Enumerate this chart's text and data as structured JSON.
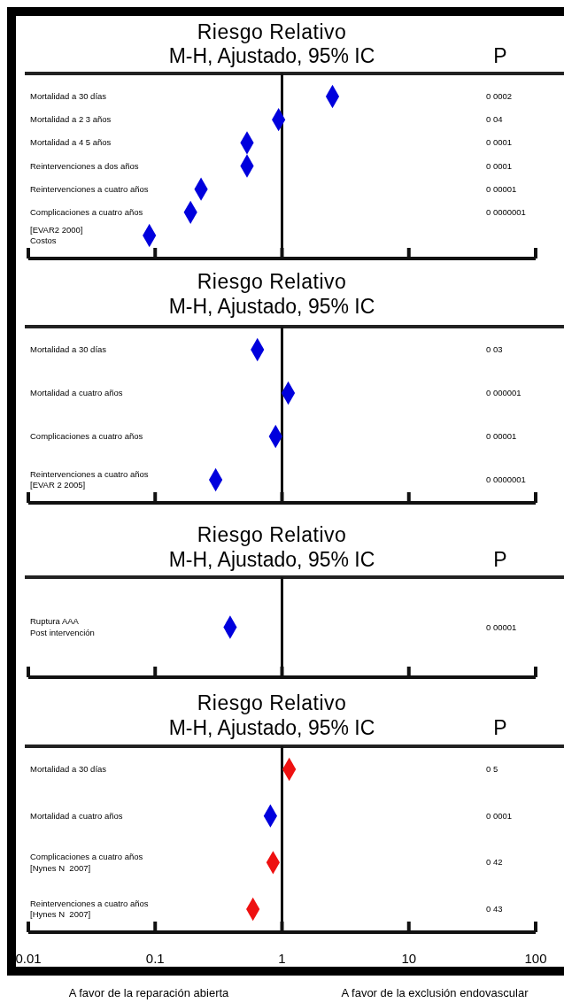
{
  "chart_data": [
    {
      "type": "scatter",
      "orientation": "horizontal",
      "title": "Riesgo Relativo",
      "subtitle": "M-H, Ajustado, 95% IC",
      "y2label": "P",
      "log": "x",
      "marker": "diamond",
      "tick_labels": "y",
      "xlim": [
        0.01,
        100
      ],
      "xticks": [
        0.01,
        0.1,
        1,
        10,
        100
      ],
      "categories": [
        "Mortalidad a 30 días",
        "Mortalidad a 2 3 años",
        "Mortalidad a 4 5 años",
        "Reintervenciones a dos años",
        "Reintervenciones a cuatro años",
        "Complicaciones a cuatro años",
        "[EVAR2 2000]\nCostos"
      ],
      "values": [
        2.5,
        0.94,
        0.53,
        0.53,
        0.23,
        0.19,
        0.09
      ],
      "color": "#0000dd",
      "ref_lines": [
        {
          "axis": "x",
          "value": 1
        }
      ],
      "annotations": [
        "0 0002",
        "0 04",
        "0 0001",
        "0 0001",
        "0 00001",
        "0 0000001"
      ]
    },
    {
      "type": "scatter",
      "orientation": "horizontal",
      "title": "Riesgo Relativo",
      "subtitle": "M-H, Ajustado, 95% IC",
      "log": "x",
      "marker": "diamond",
      "tick_labels": "y",
      "xlim": [
        0.01,
        100
      ],
      "xticks": [
        0.01,
        0.1,
        1,
        10,
        100
      ],
      "categories": [
        "Mortalidad a 30 días",
        "Mortalidad a cuatro años",
        "Complicaciones a cuatro años",
        "Reintervenciones a cuatro años\n[EVAR 2 2005]"
      ],
      "values": [
        0.64,
        1.12,
        0.89,
        0.3
      ],
      "color": "#0000dd",
      "ref_lines": [
        {
          "axis": "x",
          "value": 1
        }
      ],
      "annotations": [
        "0 03",
        "0 000001",
        "0 00001",
        "0 0000001"
      ]
    },
    {
      "type": "scatter",
      "orientation": "horizontal",
      "title": "Riesgo Relativo",
      "subtitle": "M-H, Ajustado, 95% IC",
      "y2label": "P",
      "log": "x",
      "marker": "diamond",
      "tick_labels": "y",
      "xlim": [
        0.01,
        100
      ],
      "xticks": [
        0.01,
        0.1,
        1,
        10,
        100
      ],
      "categories": [
        "Ruptura AAA\nPost intervención"
      ],
      "values": [
        0.39
      ],
      "color": "#0000dd",
      "ref_lines": [
        {
          "axis": "x",
          "value": 1
        }
      ],
      "annotations": [
        "0 00001"
      ]
    },
    {
      "type": "scatter",
      "orientation": "horizontal",
      "title": "Riesgo Relativo",
      "subtitle": "M-H, Ajustado, 95% IC",
      "y2label": "P",
      "log": "x",
      "marker": "diamond",
      "xlim": [
        0.01,
        100
      ],
      "xticks": [
        0.01,
        0.1,
        1,
        10,
        100
      ],
      "categories": [
        "Mortalidad a 30 días",
        "Mortalidad a cuatro años",
        "Complicaciones a cuatro años\n[Nynes N  2007]",
        "Reintervenciones a cuatro años\n[Hynes N  2007]"
      ],
      "values": [
        1.14,
        0.81,
        0.85,
        0.59
      ],
      "colors": [
        "#ee1111",
        "#0000dd",
        "#ee1111",
        "#ee1111"
      ],
      "ref_lines": [
        {
          "axis": "x",
          "value": 1
        }
      ],
      "annotations": [
        "0 5",
        "0 0001",
        "0 42",
        "0 43",
        "A favor de la reparación abierta",
        "A favor de la exclusión endovascular"
      ]
    }
  ]
}
